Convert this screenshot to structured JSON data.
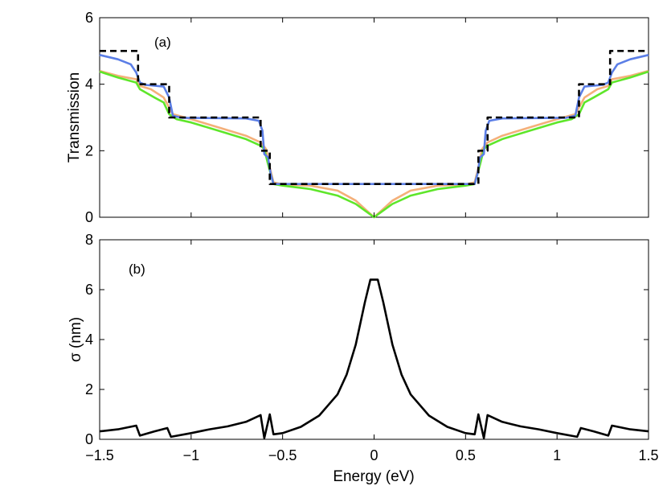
{
  "chart_data": [
    {
      "type": "line",
      "panel_label": "(a)",
      "ylabel": "Transmission",
      "xlabel": "",
      "xlim": [
        -1.5,
        1.5
      ],
      "ylim": [
        0,
        6
      ],
      "xticks": [
        -1.5,
        -1,
        -0.5,
        0,
        0.5,
        1,
        1.5
      ],
      "yticks": [
        0,
        2,
        4,
        6
      ],
      "ytick_labels": [
        "0",
        "2",
        "4",
        "6"
      ],
      "grid": false,
      "series": [
        {
          "name": "orange",
          "color": "#f4b07a",
          "style": "solid",
          "points": [
            [
              -1.5,
              4.4
            ],
            [
              -1.4,
              4.25
            ],
            [
              -1.3,
              4.15
            ],
            [
              -1.28,
              3.95
            ],
            [
              -1.22,
              3.85
            ],
            [
              -1.15,
              3.6
            ],
            [
              -1.12,
              3.3
            ],
            [
              -1.1,
              3.1
            ],
            [
              -1.0,
              2.95
            ],
            [
              -0.85,
              2.7
            ],
            [
              -0.7,
              2.45
            ],
            [
              -0.62,
              2.25
            ],
            [
              -0.59,
              2.05
            ],
            [
              -0.57,
              1.5
            ],
            [
              -0.55,
              1.05
            ],
            [
              -0.5,
              0.99
            ],
            [
              -0.35,
              0.95
            ],
            [
              -0.2,
              0.8
            ],
            [
              -0.1,
              0.5
            ],
            [
              -0.05,
              0.25
            ],
            [
              0,
              0
            ],
            [
              0.05,
              0.25
            ],
            [
              0.1,
              0.5
            ],
            [
              0.2,
              0.8
            ],
            [
              0.35,
              0.95
            ],
            [
              0.5,
              0.99
            ],
            [
              0.55,
              1.05
            ],
            [
              0.57,
              1.5
            ],
            [
              0.59,
              2.05
            ],
            [
              0.62,
              2.25
            ],
            [
              0.7,
              2.45
            ],
            [
              0.85,
              2.7
            ],
            [
              1.0,
              2.95
            ],
            [
              1.1,
              3.1
            ],
            [
              1.12,
              3.3
            ],
            [
              1.15,
              3.6
            ],
            [
              1.22,
              3.85
            ],
            [
              1.28,
              3.95
            ],
            [
              1.3,
              4.15
            ],
            [
              1.4,
              4.25
            ],
            [
              1.5,
              4.4
            ]
          ]
        },
        {
          "name": "green",
          "color": "#5ee62a",
          "style": "solid",
          "points": [
            [
              -1.5,
              4.38
            ],
            [
              -1.4,
              4.2
            ],
            [
              -1.3,
              4.05
            ],
            [
              -1.28,
              3.85
            ],
            [
              -1.2,
              3.6
            ],
            [
              -1.15,
              3.45
            ],
            [
              -1.12,
              3.1
            ],
            [
              -1.08,
              2.95
            ],
            [
              -1.0,
              2.85
            ],
            [
              -0.85,
              2.6
            ],
            [
              -0.7,
              2.35
            ],
            [
              -0.62,
              2.15
            ],
            [
              -0.6,
              2.05
            ],
            [
              -0.58,
              1.6
            ],
            [
              -0.55,
              1.0
            ],
            [
              -0.5,
              0.95
            ],
            [
              -0.35,
              0.85
            ],
            [
              -0.2,
              0.65
            ],
            [
              -0.1,
              0.4
            ],
            [
              -0.05,
              0.2
            ],
            [
              0,
              0
            ],
            [
              0.05,
              0.2
            ],
            [
              0.1,
              0.4
            ],
            [
              0.2,
              0.65
            ],
            [
              0.35,
              0.85
            ],
            [
              0.5,
              0.95
            ],
            [
              0.55,
              1.0
            ],
            [
              0.58,
              1.6
            ],
            [
              0.6,
              2.05
            ],
            [
              0.62,
              2.15
            ],
            [
              0.7,
              2.35
            ],
            [
              0.85,
              2.6
            ],
            [
              1.0,
              2.85
            ],
            [
              1.08,
              2.95
            ],
            [
              1.12,
              3.1
            ],
            [
              1.15,
              3.45
            ],
            [
              1.2,
              3.6
            ],
            [
              1.28,
              3.85
            ],
            [
              1.3,
              4.05
            ],
            [
              1.4,
              4.2
            ],
            [
              1.5,
              4.38
            ]
          ]
        },
        {
          "name": "blue",
          "color": "#5b7ee6",
          "style": "solid",
          "points": [
            [
              -1.5,
              4.88
            ],
            [
              -1.4,
              4.75
            ],
            [
              -1.33,
              4.6
            ],
            [
              -1.3,
              4.35
            ],
            [
              -1.28,
              4.05
            ],
            [
              -1.25,
              3.98
            ],
            [
              -1.15,
              3.93
            ],
            [
              -1.12,
              3.6
            ],
            [
              -1.1,
              3.05
            ],
            [
              -1.05,
              2.99
            ],
            [
              -0.7,
              2.97
            ],
            [
              -0.63,
              2.9
            ],
            [
              -0.61,
              2.6
            ],
            [
              -0.6,
              1.9
            ],
            [
              -0.58,
              1.8
            ],
            [
              -0.565,
              1.3
            ],
            [
              -0.55,
              1.0
            ],
            [
              -0.3,
              1.0
            ],
            [
              -0.05,
              1.0
            ],
            [
              0,
              1.0
            ],
            [
              0.05,
              1.0
            ],
            [
              0.3,
              1.0
            ],
            [
              0.55,
              1.0
            ],
            [
              0.565,
              1.3
            ],
            [
              0.58,
              1.8
            ],
            [
              0.6,
              1.9
            ],
            [
              0.61,
              2.6
            ],
            [
              0.63,
              2.9
            ],
            [
              0.7,
              2.97
            ],
            [
              1.05,
              2.99
            ],
            [
              1.1,
              3.05
            ],
            [
              1.12,
              3.6
            ],
            [
              1.15,
              3.93
            ],
            [
              1.25,
              3.98
            ],
            [
              1.28,
              4.05
            ],
            [
              1.3,
              4.35
            ],
            [
              1.33,
              4.6
            ],
            [
              1.4,
              4.75
            ],
            [
              1.5,
              4.88
            ]
          ]
        },
        {
          "name": "black-dashed",
          "color": "#000000",
          "style": "dashed",
          "points": [
            [
              -1.5,
              5
            ],
            [
              -1.29,
              5
            ],
            [
              -1.29,
              4
            ],
            [
              -1.12,
              4
            ],
            [
              -1.12,
              3
            ],
            [
              -0.62,
              3
            ],
            [
              -0.62,
              2
            ],
            [
              -0.57,
              2
            ],
            [
              -0.57,
              1
            ],
            [
              0.57,
              1
            ],
            [
              0.57,
              2
            ],
            [
              0.62,
              2
            ],
            [
              0.62,
              3
            ],
            [
              1.12,
              3
            ],
            [
              1.12,
              4
            ],
            [
              1.29,
              4
            ],
            [
              1.29,
              5
            ],
            [
              1.5,
              5
            ]
          ]
        }
      ]
    },
    {
      "type": "line",
      "panel_label": "(b)",
      "ylabel": "σ (nm)",
      "xlabel": "Energy (eV)",
      "xlim": [
        -1.5,
        1.5
      ],
      "ylim": [
        0,
        8
      ],
      "xticks": [
        -1.5,
        -1,
        -0.5,
        0,
        0.5,
        1,
        1.5
      ],
      "xtick_labels": [
        "−1.5",
        "−1",
        "−0.5",
        "0",
        "0.5",
        "1",
        "1.5"
      ],
      "yticks": [
        0,
        2,
        4,
        6,
        8
      ],
      "ytick_labels": [
        "0",
        "2",
        "4",
        "6",
        "8"
      ],
      "grid": false,
      "series": [
        {
          "name": "sigma",
          "color": "#000000",
          "style": "solid",
          "points": [
            [
              -1.5,
              0.32
            ],
            [
              -1.4,
              0.4
            ],
            [
              -1.3,
              0.55
            ],
            [
              -1.28,
              0.15
            ],
            [
              -1.2,
              0.32
            ],
            [
              -1.13,
              0.45
            ],
            [
              -1.11,
              0.1
            ],
            [
              -1.0,
              0.25
            ],
            [
              -0.9,
              0.4
            ],
            [
              -0.8,
              0.52
            ],
            [
              -0.7,
              0.7
            ],
            [
              -0.62,
              0.97
            ],
            [
              -0.6,
              0.05
            ],
            [
              -0.57,
              1.0
            ],
            [
              -0.55,
              0.2
            ],
            [
              -0.5,
              0.25
            ],
            [
              -0.4,
              0.5
            ],
            [
              -0.3,
              0.95
            ],
            [
              -0.2,
              1.8
            ],
            [
              -0.15,
              2.6
            ],
            [
              -0.1,
              3.8
            ],
            [
              -0.05,
              5.5
            ],
            [
              -0.02,
              6.4
            ],
            [
              0.02,
              6.4
            ],
            [
              0.05,
              5.5
            ],
            [
              0.1,
              3.8
            ],
            [
              0.15,
              2.6
            ],
            [
              0.2,
              1.8
            ],
            [
              0.3,
              0.95
            ],
            [
              0.4,
              0.5
            ],
            [
              0.5,
              0.25
            ],
            [
              0.55,
              0.2
            ],
            [
              0.57,
              1.0
            ],
            [
              0.6,
              0.05
            ],
            [
              0.62,
              0.97
            ],
            [
              0.7,
              0.7
            ],
            [
              0.8,
              0.52
            ],
            [
              0.9,
              0.4
            ],
            [
              1.0,
              0.25
            ],
            [
              1.11,
              0.1
            ],
            [
              1.13,
              0.45
            ],
            [
              1.2,
              0.32
            ],
            [
              1.28,
              0.15
            ],
            [
              1.3,
              0.55
            ],
            [
              1.4,
              0.4
            ],
            [
              1.5,
              0.32
            ]
          ]
        }
      ]
    }
  ]
}
